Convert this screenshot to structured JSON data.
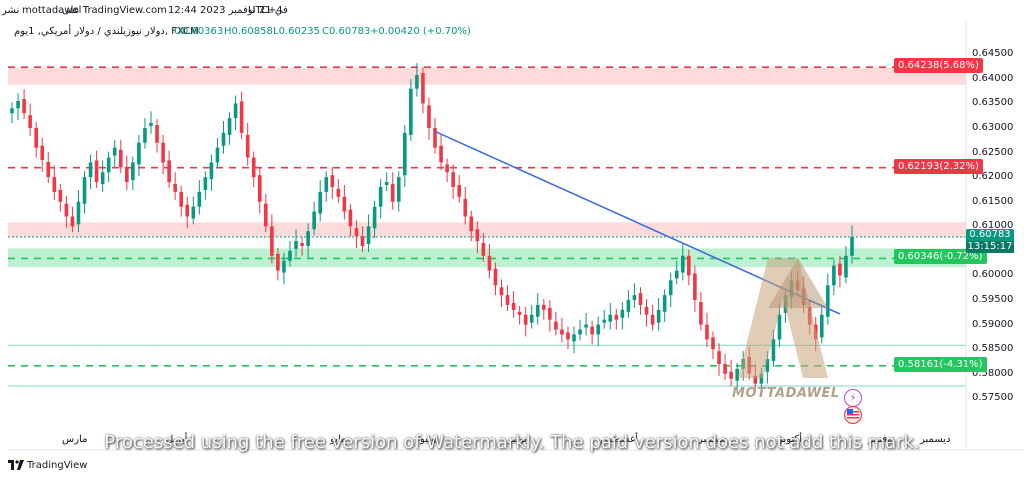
{
  "header": {
    "timezone": "UTC+4",
    "timestamp": "في 21 نوفمبر 2023 12:44",
    "site": "على TradingView.com",
    "user": "mottadawel",
    "publish": "نشر"
  },
  "ohlc": {
    "symbol": "دولار نيوزيلندي / دولار أمريكي, 1يوم, FXCM",
    "open": "O0.60363",
    "high": "H0.60858",
    "low": "L0.60235",
    "close": "C0.60783",
    "change": "+0.00420 (+0.70%)"
  },
  "footer": {
    "brand": "TradingView"
  },
  "watermark_text": "Processed using the free version of Watermarkly. The paid version does not add this mark.",
  "logo_text": "MOTTADAWEL",
  "current_price": {
    "price": "0.60783",
    "countdown": "13:15:17"
  },
  "level_badges": [
    {
      "label": "0.64238(5.68%)",
      "price": 0.64238,
      "color": "#f23645"
    },
    {
      "label": "0.62193(2.32%)",
      "price": 0.62193,
      "color": "#f23645"
    },
    {
      "label": "0.60346(-0.72%)",
      "price": 0.60346,
      "color": "#22c55e"
    },
    {
      "label": "0.58161(-4.31%)",
      "price": 0.58161,
      "color": "#22c55e"
    }
  ],
  "colors": {
    "up": "#089981",
    "down": "#f23645",
    "trendline": "#3f6fe0",
    "resistance_zone": "#fccfcf",
    "support_zone": "#a7ecc3"
  },
  "chart_data": {
    "type": "candlestick",
    "title": "",
    "y_axis_ticks": [
      "0.64500",
      "0.64000",
      "0.63500",
      "0.63000",
      "0.62500",
      "0.62000",
      "0.61500",
      "0.61000",
      "0.60500",
      "0.60000",
      "0.59500",
      "0.59000",
      "0.58500",
      "0.58000",
      "0.57500"
    ],
    "ylim": [
      0.571,
      0.6475
    ],
    "x_axis_ticks": [
      "مارس",
      "أبريل",
      "مايو",
      "يونيو",
      "يوليو",
      "أغسطس",
      "سبتمبر",
      "أكتوبر",
      "نوفمبر",
      "ديسمبر"
    ],
    "horizontal_levels": [
      {
        "price": 0.64238,
        "style": "dashed",
        "color": "#f23645"
      },
      {
        "price": 0.62193,
        "style": "dashed",
        "color": "#f23645"
      },
      {
        "price": 0.60346,
        "style": "dashed",
        "color": "#22c55e"
      },
      {
        "price": 0.58161,
        "style": "dashed",
        "color": "#22c55e"
      },
      {
        "price": 0.5858,
        "style": "solid",
        "color": "#7fd3c7"
      },
      {
        "price": 0.5775,
        "style": "solid",
        "color": "#7fd3c7"
      },
      {
        "price": 0.60783,
        "style": "dotted",
        "color": "#089981"
      }
    ],
    "zones": [
      {
        "from": 0.6388,
        "to": 0.6422,
        "color": "#fccfcf"
      },
      {
        "from": 0.6078,
        "to": 0.6108,
        "color": "#fccfcf"
      },
      {
        "from": 0.6017,
        "to": 0.6055,
        "color": "#a7ecc3"
      }
    ],
    "trendline": {
      "from": {
        "bar": 70,
        "price": 0.6293
      },
      "to": {
        "bar": 133,
        "price": 0.5932
      }
    },
    "close_path": [
      0.634,
      0.6355,
      0.633,
      0.63,
      0.626,
      0.6235,
      0.62,
      0.617,
      0.615,
      0.612,
      0.61,
      0.615,
      0.62,
      0.623,
      0.619,
      0.621,
      0.624,
      0.626,
      0.622,
      0.619,
      0.623,
      0.627,
      0.63,
      0.631,
      0.627,
      0.623,
      0.619,
      0.617,
      0.614,
      0.612,
      0.614,
      0.617,
      0.62,
      0.623,
      0.626,
      0.629,
      0.632,
      0.635,
      0.629,
      0.624,
      0.62,
      0.615,
      0.61,
      0.604,
      0.601,
      0.603,
      0.605,
      0.607,
      0.606,
      0.609,
      0.613,
      0.617,
      0.62,
      0.618,
      0.616,
      0.613,
      0.61,
      0.608,
      0.606,
      0.61,
      0.614,
      0.618,
      0.619,
      0.615,
      0.62,
      0.629,
      0.638,
      0.6408,
      0.635,
      0.63,
      0.626,
      0.623,
      0.621,
      0.618,
      0.616,
      0.612,
      0.609,
      0.607,
      0.604,
      0.601,
      0.598,
      0.596,
      0.594,
      0.593,
      0.592,
      0.59,
      0.592,
      0.594,
      0.593,
      0.591,
      0.589,
      0.588,
      0.587,
      0.588,
      0.589,
      0.59,
      0.588,
      0.59,
      0.591,
      0.592,
      0.591,
      0.593,
      0.595,
      0.596,
      0.594,
      0.592,
      0.59,
      0.593,
      0.596,
      0.599,
      0.601,
      0.604,
      0.6,
      0.595,
      0.59,
      0.587,
      0.585,
      0.582,
      0.58,
      0.579,
      0.581,
      0.583,
      0.58,
      0.578,
      0.58,
      0.583,
      0.587,
      0.592,
      0.596,
      0.599,
      0.597,
      0.594,
      0.59,
      0.587,
      0.592,
      0.598,
      0.602,
      0.6,
      0.604,
      0.6078
    ]
  }
}
